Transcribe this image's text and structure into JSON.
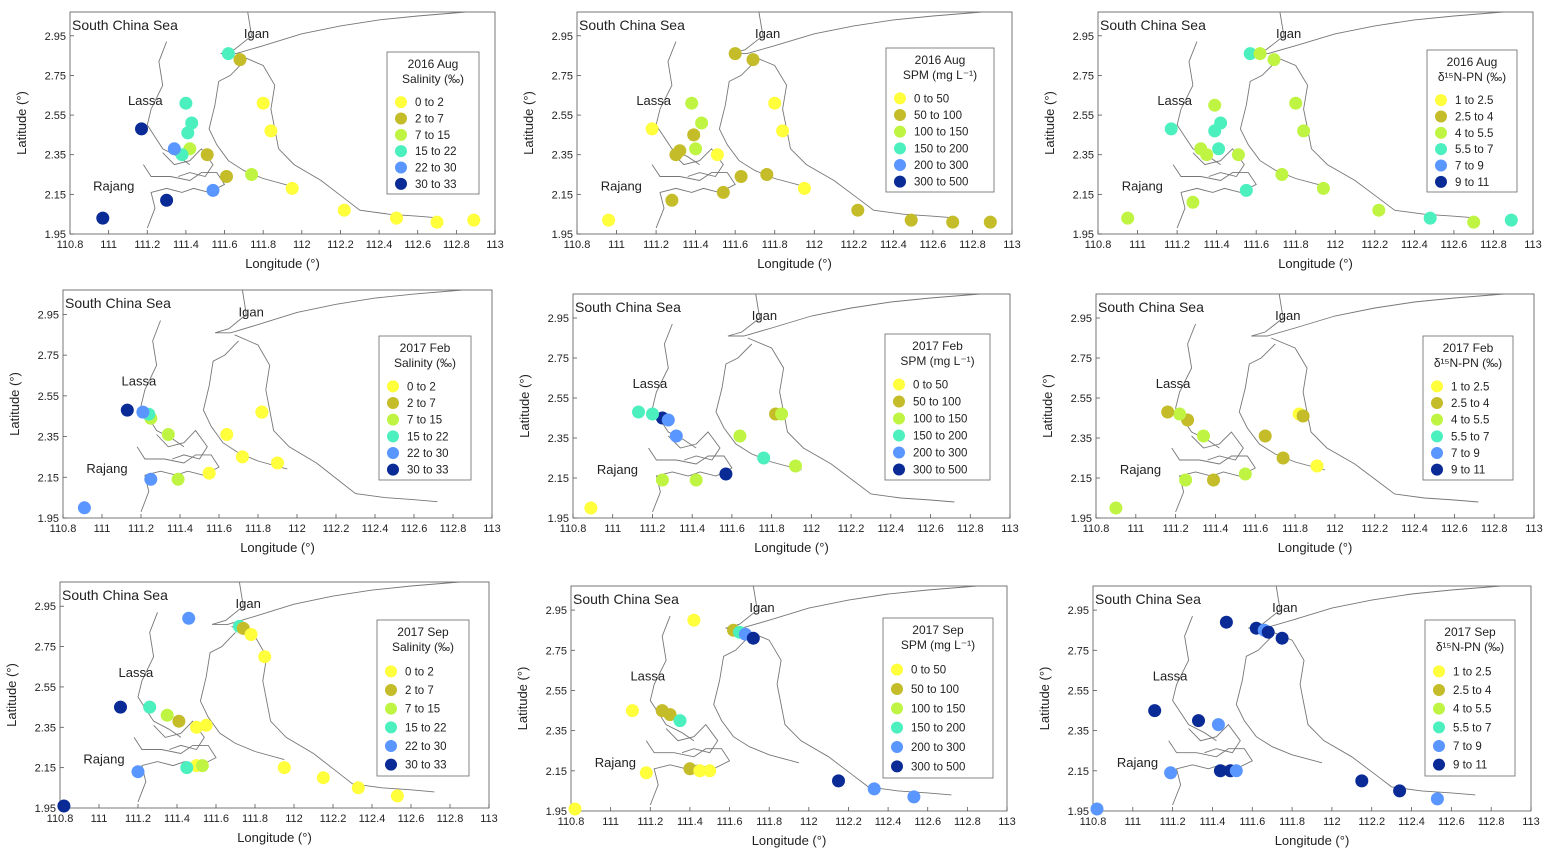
{
  "axes": {
    "xlabel": "Longitude (°)",
    "ylabel": "Latitude (°)",
    "xticks": [
      "110.8",
      "111",
      "111.2",
      "111.4",
      "111.6",
      "111.8",
      "112",
      "112.2",
      "112.4",
      "112.6",
      "112.8",
      "113"
    ],
    "yticks": [
      "1.95",
      "2.15",
      "2.35",
      "2.55",
      "2.75",
      "2.95"
    ],
    "xlim": [
      110.8,
      113.0
    ],
    "ylim": [
      1.95,
      3.07
    ]
  },
  "place_labels": {
    "sea": "South China Sea",
    "igan": "Igan",
    "lassa": "Lassa",
    "rajang": "Rajang"
  },
  "class_colors": [
    "#ffff3c",
    "#c4bc28",
    "#bff542",
    "#4cefbe",
    "#5a96ff",
    "#0a2a96"
  ],
  "legends": {
    "salinity": {
      "subtitle": "Salinity (‰)",
      "items": [
        "0  to  2",
        "2  to  7",
        "7  to  15",
        "15  to  22",
        "22  to  30",
        "30  to  33"
      ]
    },
    "spm": {
      "subtitle": "SPM (mg L⁻¹)",
      "items": [
        "0  to  50",
        "50  to  100",
        "100  to  150",
        "150  to  200",
        "200  to  300",
        "300  to  500"
      ]
    },
    "d15n": {
      "subtitle": "δ¹⁵N-PN (‰)",
      "items": [
        "1  to  2.5",
        "2.5  to  4",
        "4  to  5.5",
        "5.5  to  7",
        "7  to  9",
        "9  to  11"
      ]
    }
  },
  "chart_data": [
    {
      "type": "scatter",
      "title": "2016 Aug",
      "variable": "salinity",
      "points": [
        [
          111.62,
          2.86,
          3
        ],
        [
          111.68,
          2.83,
          1
        ],
        [
          111.8,
          2.61,
          0
        ],
        [
          111.84,
          2.47,
          0
        ],
        [
          111.4,
          2.61,
          3
        ],
        [
          111.43,
          2.51,
          3
        ],
        [
          111.41,
          2.46,
          3
        ],
        [
          111.42,
          2.38,
          2
        ],
        [
          111.38,
          2.35,
          3
        ],
        [
          111.34,
          2.38,
          4
        ],
        [
          111.17,
          2.48,
          5
        ],
        [
          111.51,
          2.35,
          1
        ],
        [
          111.61,
          2.24,
          1
        ],
        [
          111.74,
          2.25,
          2
        ],
        [
          111.95,
          2.18,
          0
        ],
        [
          112.22,
          2.07,
          0
        ],
        [
          112.49,
          2.03,
          0
        ],
        [
          112.7,
          2.01,
          0
        ],
        [
          112.89,
          2.02,
          0
        ],
        [
          111.54,
          2.17,
          4
        ],
        [
          111.3,
          2.12,
          5
        ],
        [
          110.97,
          2.03,
          5
        ]
      ]
    },
    {
      "type": "scatter",
      "title": "2016 Aug",
      "variable": "spm",
      "points": [
        [
          111.6,
          2.86,
          1
        ],
        [
          111.69,
          2.83,
          1
        ],
        [
          111.8,
          2.61,
          0
        ],
        [
          111.84,
          2.47,
          0
        ],
        [
          111.38,
          2.61,
          2
        ],
        [
          111.43,
          2.51,
          2
        ],
        [
          111.39,
          2.45,
          1
        ],
        [
          111.4,
          2.38,
          2
        ],
        [
          111.32,
          2.37,
          1
        ],
        [
          111.3,
          2.35,
          1
        ],
        [
          111.18,
          2.48,
          0
        ],
        [
          111.51,
          2.35,
          0
        ],
        [
          111.63,
          2.24,
          1
        ],
        [
          111.76,
          2.25,
          1
        ],
        [
          111.95,
          2.18,
          0
        ],
        [
          112.22,
          2.07,
          1
        ],
        [
          112.49,
          2.02,
          1
        ],
        [
          112.7,
          2.01,
          1
        ],
        [
          112.89,
          2.01,
          1
        ],
        [
          111.54,
          2.16,
          1
        ],
        [
          111.28,
          2.12,
          1
        ],
        [
          110.96,
          2.02,
          0
        ]
      ]
    },
    {
      "type": "scatter",
      "title": "2016 Aug",
      "variable": "d15n",
      "points": [
        [
          111.57,
          2.86,
          3
        ],
        [
          111.62,
          2.86,
          2
        ],
        [
          111.69,
          2.83,
          2
        ],
        [
          111.8,
          2.61,
          2
        ],
        [
          111.84,
          2.47,
          2
        ],
        [
          111.39,
          2.6,
          2
        ],
        [
          111.42,
          2.51,
          3
        ],
        [
          111.39,
          2.47,
          3
        ],
        [
          111.41,
          2.38,
          3
        ],
        [
          111.32,
          2.38,
          2
        ],
        [
          111.35,
          2.35,
          2
        ],
        [
          111.17,
          2.48,
          3
        ],
        [
          111.51,
          2.35,
          2
        ],
        [
          111.73,
          2.25,
          2
        ],
        [
          111.94,
          2.18,
          2
        ],
        [
          112.22,
          2.07,
          2
        ],
        [
          112.48,
          2.03,
          3
        ],
        [
          112.7,
          2.01,
          2
        ],
        [
          112.89,
          2.02,
          3
        ],
        [
          111.55,
          2.17,
          3
        ],
        [
          111.28,
          2.11,
          2
        ],
        [
          110.95,
          2.03,
          2
        ]
      ]
    },
    {
      "type": "scatter",
      "title": "2017 Feb",
      "variable": "salinity",
      "points": [
        [
          111.82,
          2.47,
          0
        ],
        [
          111.82,
          2.47,
          0
        ],
        [
          111.64,
          2.36,
          0
        ],
        [
          111.72,
          2.25,
          0
        ],
        [
          111.9,
          2.22,
          0
        ],
        [
          111.55,
          2.17,
          0
        ],
        [
          111.39,
          2.14,
          2
        ],
        [
          111.34,
          2.36,
          2
        ],
        [
          111.25,
          2.44,
          2
        ],
        [
          111.24,
          2.46,
          3
        ],
        [
          111.21,
          2.47,
          4
        ],
        [
          111.13,
          2.48,
          5
        ],
        [
          111.25,
          2.14,
          4
        ],
        [
          110.91,
          2.0,
          4
        ]
      ]
    },
    {
      "type": "scatter",
      "title": "2017 Feb",
      "variable": "spm",
      "points": [
        [
          111.82,
          2.47,
          1
        ],
        [
          111.85,
          2.47,
          2
        ],
        [
          111.64,
          2.36,
          2
        ],
        [
          111.76,
          2.25,
          3
        ],
        [
          111.92,
          2.21,
          2
        ],
        [
          111.57,
          2.17,
          5
        ],
        [
          111.42,
          2.14,
          2
        ],
        [
          111.32,
          2.36,
          4
        ],
        [
          111.25,
          2.45,
          5
        ],
        [
          111.28,
          2.44,
          4
        ],
        [
          111.2,
          2.47,
          3
        ],
        [
          111.13,
          2.48,
          3
        ],
        [
          111.25,
          2.14,
          2
        ],
        [
          110.89,
          2.0,
          0
        ]
      ]
    },
    {
      "type": "scatter",
      "title": "2017 Feb",
      "variable": "d15n",
      "points": [
        [
          111.82,
          2.47,
          0
        ],
        [
          111.84,
          2.46,
          1
        ],
        [
          111.65,
          2.36,
          1
        ],
        [
          111.74,
          2.25,
          1
        ],
        [
          111.91,
          2.21,
          0
        ],
        [
          111.55,
          2.17,
          2
        ],
        [
          111.39,
          2.14,
          1
        ],
        [
          111.34,
          2.36,
          2
        ],
        [
          111.26,
          2.44,
          1
        ],
        [
          111.22,
          2.47,
          2
        ],
        [
          111.16,
          2.48,
          1
        ],
        [
          111.25,
          2.14,
          2
        ],
        [
          110.9,
          2.0,
          2
        ]
      ]
    },
    {
      "type": "scatter",
      "title": "2017 Sep",
      "variable": "salinity",
      "points": [
        [
          111.72,
          2.85,
          3
        ],
        [
          111.74,
          2.84,
          1
        ],
        [
          111.78,
          2.81,
          0
        ],
        [
          111.85,
          2.7,
          0
        ],
        [
          111.46,
          2.89,
          4
        ],
        [
          111.26,
          2.45,
          3
        ],
        [
          111.35,
          2.41,
          2
        ],
        [
          111.41,
          2.38,
          1
        ],
        [
          111.5,
          2.35,
          0
        ],
        [
          111.55,
          2.36,
          0
        ],
        [
          111.11,
          2.45,
          5
        ],
        [
          111.5,
          2.16,
          0
        ],
        [
          111.53,
          2.16,
          2
        ],
        [
          111.45,
          2.15,
          3
        ],
        [
          111.95,
          2.15,
          0
        ],
        [
          112.15,
          2.1,
          0
        ],
        [
          112.33,
          2.05,
          0
        ],
        [
          112.53,
          2.01,
          0
        ],
        [
          111.2,
          2.13,
          4
        ],
        [
          110.82,
          1.96,
          5
        ]
      ]
    },
    {
      "type": "scatter",
      "title": "2017 Sep",
      "variable": "spm",
      "points": [
        [
          111.62,
          2.85,
          1
        ],
        [
          111.65,
          2.84,
          3
        ],
        [
          111.68,
          2.83,
          4
        ],
        [
          111.72,
          2.81,
          5
        ],
        [
          111.42,
          2.9,
          0
        ],
        [
          111.26,
          2.45,
          1
        ],
        [
          111.3,
          2.43,
          1
        ],
        [
          111.35,
          2.4,
          3
        ],
        [
          111.11,
          2.45,
          0
        ],
        [
          111.4,
          2.16,
          1
        ],
        [
          111.45,
          2.15,
          0
        ],
        [
          111.5,
          2.15,
          0
        ],
        [
          111.18,
          2.14,
          0
        ],
        [
          112.15,
          2.1,
          5
        ],
        [
          112.33,
          2.06,
          4
        ],
        [
          112.53,
          2.02,
          4
        ],
        [
          110.82,
          1.96,
          0
        ]
      ]
    },
    {
      "type": "scatter",
      "title": "2017 Sep",
      "variable": "d15n",
      "points": [
        [
          111.62,
          2.86,
          5
        ],
        [
          111.66,
          2.85,
          4
        ],
        [
          111.68,
          2.84,
          5
        ],
        [
          111.75,
          2.81,
          5
        ],
        [
          111.47,
          2.89,
          5
        ],
        [
          111.33,
          2.4,
          5
        ],
        [
          111.43,
          2.38,
          4
        ],
        [
          111.11,
          2.45,
          5
        ],
        [
          111.44,
          2.15,
          5
        ],
        [
          111.49,
          2.15,
          5
        ],
        [
          111.52,
          2.15,
          4
        ],
        [
          111.19,
          2.14,
          4
        ],
        [
          112.15,
          2.1,
          5
        ],
        [
          112.34,
          2.05,
          5
        ],
        [
          112.53,
          2.01,
          4
        ],
        [
          110.82,
          1.96,
          4
        ]
      ]
    }
  ]
}
